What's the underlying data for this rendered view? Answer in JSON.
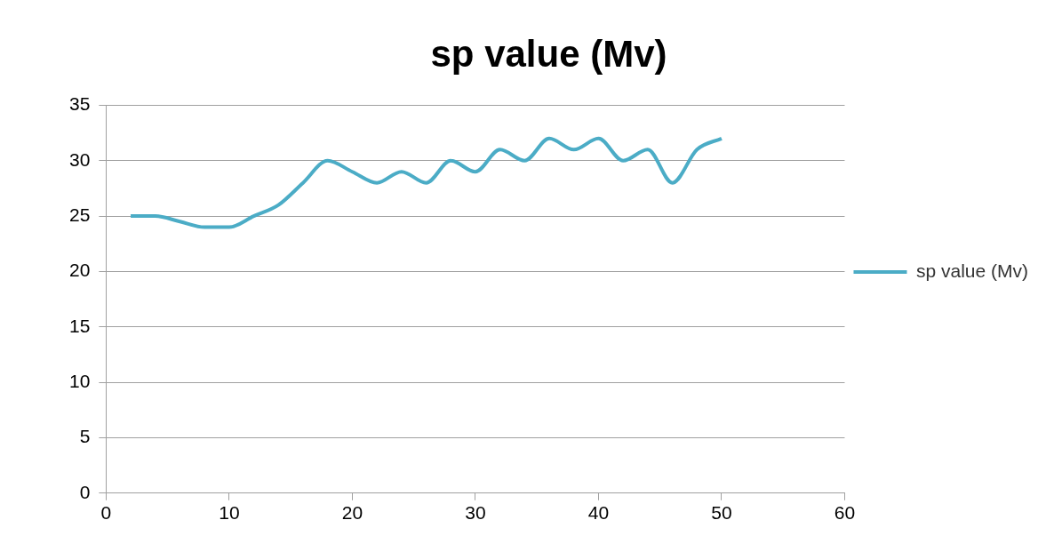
{
  "chart_data": {
    "type": "line",
    "title": "sp value (Mv)",
    "x": [
      2,
      4,
      6,
      8,
      10,
      12,
      14,
      16,
      18,
      20,
      22,
      24,
      26,
      28,
      30,
      32,
      34,
      36,
      38,
      40,
      42,
      44,
      46,
      48,
      50
    ],
    "series": [
      {
        "name": "sp value (Mv)",
        "color": "#4bacc6",
        "values": [
          25,
          25,
          24.5,
          24,
          24,
          25,
          26,
          28,
          30,
          29,
          28,
          29,
          28,
          30,
          29,
          31,
          30,
          32,
          31,
          32,
          30,
          31,
          28,
          31,
          32
        ]
      }
    ],
    "xlim": [
      0,
      60
    ],
    "xticks": [
      0,
      10,
      20,
      30,
      40,
      50,
      60
    ],
    "ylim": [
      0,
      35
    ],
    "yticks": [
      0,
      5,
      10,
      15,
      20,
      25,
      30,
      35
    ],
    "grid": "y",
    "legend": "right",
    "marker": "none",
    "line_style": "solid"
  }
}
